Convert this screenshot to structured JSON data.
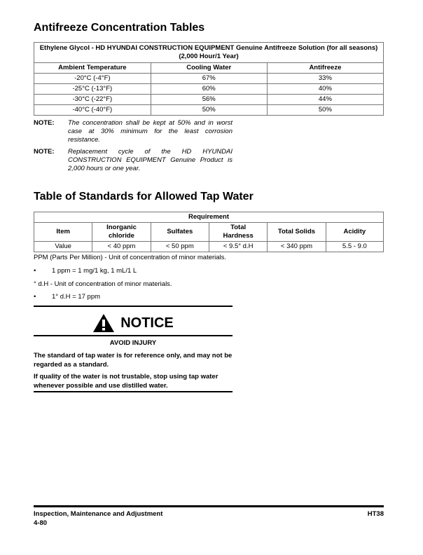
{
  "section1": {
    "title": "Antifreeze Concentration Tables",
    "table": {
      "caption": "Ethylene Glycol - HD HYUNDAI CONSTRUCTION EQUIPMENT Genuine Antifreeze Solution (for all seasons) (2,000 Hour/1 Year)",
      "headers": [
        "Ambient Temperature",
        "Cooling Water",
        "Antifreeze"
      ],
      "rows": [
        [
          "-20°C (-4°F)",
          "67%",
          "33%"
        ],
        [
          "-25°C (-13°F)",
          "60%",
          "40%"
        ],
        [
          "-30°C (-22°F)",
          "56%",
          "44%"
        ],
        [
          "-40°C (-40°F)",
          "50%",
          "50%"
        ]
      ]
    },
    "notes": [
      {
        "label": "NOTE:",
        "text": "The concentration shall be kept at 50% and in worst case at 30% minimum for the least corrosion resistance."
      },
      {
        "label": "NOTE:",
        "text": "Replacement cycle of the HD HYUNDAI CONSTRUCTION EQUIPMENT Genuine Product is 2,000 hours or one year."
      }
    ]
  },
  "section2": {
    "title": "Table of Standards for Allowed Tap Water",
    "table": {
      "group_header": "Requirement",
      "headers": [
        "Item",
        "Inorganic chloride",
        "Sulfates",
        "Total Hardness",
        "Total Solids",
        "Acidity"
      ],
      "row": [
        "Value",
        "< 40 ppm",
        "< 50 ppm",
        "< 9.5° d.H",
        "< 340 ppm",
        "5.5 - 9.0"
      ]
    },
    "ppm_def": "PPM (Parts Per Million) - Unit of concentration of minor materials.",
    "ppm_bullet": "1 ppm = 1 mg/1 kg, 1 mL/1 L",
    "dh_def": "° d.H - Unit of concentration of minor materials.",
    "dh_bullet": "1° d.H = 17 ppm",
    "bullet": "•"
  },
  "notice": {
    "title": "NOTICE",
    "subtitle": "AVOID INJURY",
    "icon": "warning-triangle-icon",
    "paragraphs": [
      "The standard of tap water is for reference only, and may not be regarded as a standard.",
      "If quality of the water is not trustable, stop using tap water whenever possible and use distilled water."
    ]
  },
  "footer": {
    "section": "Inspection, Maintenance and Adjustment",
    "page": "4-80",
    "model": "HT38"
  }
}
